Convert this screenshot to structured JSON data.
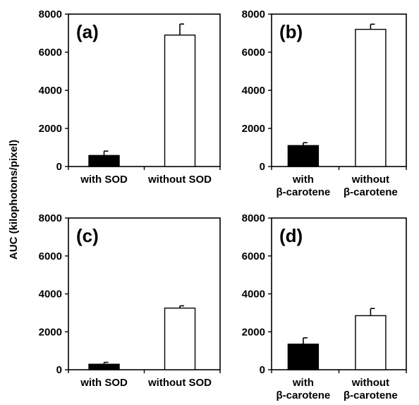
{
  "ylabel": "AUC (kilophotons/pixel)",
  "chart_data": [
    {
      "type": "bar",
      "panel_label": "(a)",
      "categories": [
        [
          "with SOD"
        ],
        [
          "without SOD"
        ]
      ],
      "values": [
        580,
        6900
      ],
      "errors": [
        230,
        580
      ],
      "bar_colors": [
        "#000000",
        "#ffffff"
      ],
      "yticks": [
        "0",
        "2000",
        "4000",
        "6000",
        "8000"
      ],
      "ylim": [
        0,
        8000
      ],
      "ylabel": "AUC (kilophotons/pixel)"
    },
    {
      "type": "bar",
      "panel_label": "(b)",
      "categories": [
        [
          "with",
          "β-carotene"
        ],
        [
          "without",
          "β-carotene"
        ]
      ],
      "values": [
        1100,
        7200
      ],
      "errors": [
        150,
        270
      ],
      "bar_colors": [
        "#000000",
        "#ffffff"
      ],
      "yticks": [
        "0",
        "2000",
        "4000",
        "6000",
        "8000"
      ],
      "ylim": [
        0,
        8000
      ],
      "ylabel": "AUC (kilophotons/pixel)"
    },
    {
      "type": "bar",
      "panel_label": "(c)",
      "categories": [
        [
          "with SOD"
        ],
        [
          "without SOD"
        ]
      ],
      "values": [
        290,
        3250
      ],
      "errors": [
        100,
        120
      ],
      "bar_colors": [
        "#000000",
        "#ffffff"
      ],
      "yticks": [
        "0",
        "2000",
        "4000",
        "6000",
        "8000"
      ],
      "ylim": [
        0,
        8000
      ],
      "ylabel": "AUC (kilophotons/pixel)"
    },
    {
      "type": "bar",
      "panel_label": "(d)",
      "categories": [
        [
          "with",
          "β-carotene"
        ],
        [
          "without",
          "β-carotene"
        ]
      ],
      "values": [
        1350,
        2850
      ],
      "errors": [
        330,
        380
      ],
      "bar_colors": [
        "#000000",
        "#ffffff"
      ],
      "yticks": [
        "0",
        "2000",
        "4000",
        "6000",
        "8000"
      ],
      "ylim": [
        0,
        8000
      ],
      "ylabel": "AUC (kilophotons/pixel)"
    }
  ]
}
